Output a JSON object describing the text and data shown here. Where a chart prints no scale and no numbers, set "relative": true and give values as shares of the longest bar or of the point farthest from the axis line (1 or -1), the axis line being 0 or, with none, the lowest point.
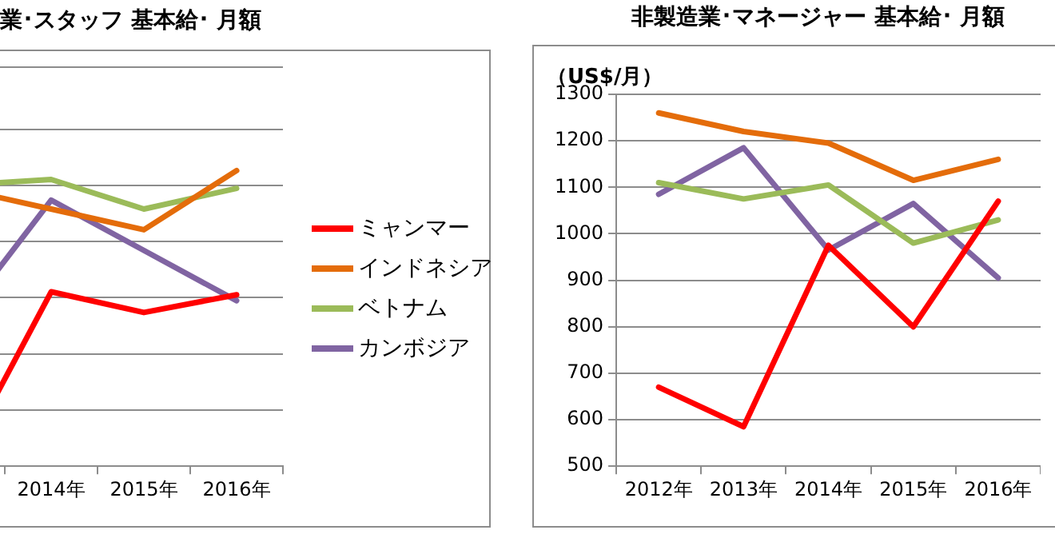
{
  "chart_data": [
    {
      "type": "line",
      "title": "業･スタッフ 基本給･ 月額",
      "categories": [
        null,
        "2014年",
        "2015年",
        "2016年"
      ],
      "relative": true,
      "grid": "y",
      "legend": "right",
      "marker": "none",
      "series": [
        {
          "name": "ミャンマー",
          "color": "#ff0000",
          "values": [
            0,
            0.59,
            0.52,
            0.58
          ]
        },
        {
          "name": "インドネシア",
          "color": "#e46c0a",
          "values": [
            0.94,
            0.87,
            0.8,
            1
          ]
        },
        {
          "name": "ベトナム",
          "color": "#9bbb59",
          "values": [
            0.95,
            0.97,
            0.87,
            0.94
          ]
        },
        {
          "name": "カンボジア",
          "color": "#8064a2",
          "values": [
            0.49,
            0.9,
            0.73,
            0.56
          ]
        }
      ]
    },
    {
      "type": "line",
      "title": "非製造業･マネージャー 基本給･ 月額",
      "ylabel": "（US$/月）",
      "categories": [
        "2012年",
        "2013年",
        "2014年",
        "2015年",
        "2016年"
      ],
      "ylim": [
        500,
        1300
      ],
      "yticks": [
        500,
        600,
        700,
        800,
        900,
        1000,
        1100,
        1200,
        1300
      ],
      "grid": "y",
      "legend": false,
      "marker": "none",
      "series": [
        {
          "color": "#ff0000",
          "values": [
            670,
            585,
            975,
            800,
            1070
          ]
        },
        {
          "color": "#e46c0a",
          "values": [
            1260,
            1220,
            1195,
            1115,
            1160
          ]
        },
        {
          "color": "#9bbb59",
          "values": [
            1110,
            1075,
            1105,
            980,
            1030
          ]
        },
        {
          "color": "#8064a2",
          "values": [
            1085,
            1185,
            965,
            1065,
            905
          ]
        }
      ]
    }
  ]
}
